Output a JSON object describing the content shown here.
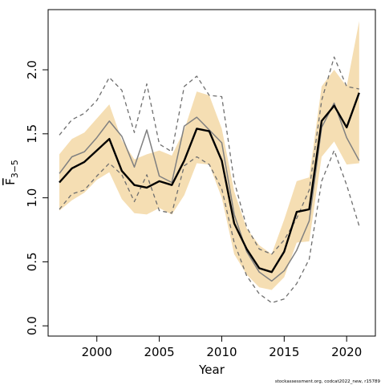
{
  "chart_data": {
    "type": "line",
    "xlabel": "Year",
    "ylabel": {
      "main": "F",
      "sub": "3−5"
    },
    "xlim": [
      1996.1,
      2022.3
    ],
    "ylim": [
      -0.08,
      2.47
    ],
    "xticks": [
      2000,
      2005,
      2010,
      2015,
      2020
    ],
    "yticks": [
      "0.0",
      "0.5",
      "1.0",
      "1.5",
      "2.0"
    ],
    "grid": false,
    "legend": "none",
    "footnote": "stockassessment.org, codcat2022_new, r15789",
    "colors": {
      "band": "#f5deb3",
      "estimate": "#000000",
      "retro": "#808080",
      "retro_dashed": "#6e6e6e"
    },
    "series": [
      {
        "role": "confidence-band",
        "x": [
          1997,
          1998,
          1999,
          2000,
          2001,
          2002,
          2003,
          2004,
          2005,
          2006,
          2007,
          2008,
          2009,
          2010,
          2011,
          2012,
          2013,
          2014,
          2015,
          2016,
          2017,
          2018,
          2019,
          2020,
          2021
        ],
        "lower": [
          0.9,
          0.98,
          1.04,
          1.14,
          1.2,
          0.99,
          0.88,
          0.87,
          0.92,
          0.87,
          1.02,
          1.27,
          1.26,
          1.0,
          0.56,
          0.4,
          0.3,
          0.28,
          0.38,
          0.65,
          0.66,
          1.32,
          1.44,
          1.26,
          1.27
        ],
        "upper": [
          1.34,
          1.46,
          1.51,
          1.62,
          1.73,
          1.45,
          1.3,
          1.34,
          1.37,
          1.33,
          1.53,
          1.83,
          1.8,
          1.54,
          1.05,
          0.76,
          0.63,
          0.56,
          0.83,
          1.13,
          1.16,
          1.87,
          2.0,
          1.87,
          2.38
        ]
      },
      {
        "role": "estimate",
        "x": [
          1997,
          1998,
          1999,
          2000,
          2001,
          2002,
          2003,
          2004,
          2005,
          2006,
          2007,
          2008,
          2009,
          2010,
          2011,
          2012,
          2013,
          2014,
          2015,
          2016,
          2017,
          2018,
          2019,
          2020,
          2021
        ],
        "values": [
          1.12,
          1.23,
          1.28,
          1.37,
          1.46,
          1.21,
          1.1,
          1.08,
          1.13,
          1.1,
          1.29,
          1.54,
          1.52,
          1.29,
          0.8,
          0.6,
          0.45,
          0.42,
          0.58,
          0.89,
          0.91,
          1.6,
          1.72,
          1.55,
          1.82
        ]
      },
      {
        "role": "retro-solid",
        "x": [
          1997,
          1998,
          1999,
          2000,
          2001,
          2002,
          2003,
          2004,
          2005,
          2006,
          2007,
          2008,
          2009,
          2010,
          2011,
          2012,
          2013,
          2014,
          2015,
          2016,
          2017,
          2018,
          2019,
          2020,
          2021
        ],
        "values": [
          1.19,
          1.32,
          1.36,
          1.47,
          1.6,
          1.48,
          1.24,
          1.53,
          1.17,
          1.12,
          1.56,
          1.63,
          1.53,
          1.43,
          0.87,
          0.58,
          0.42,
          0.35,
          0.43,
          0.59,
          0.82,
          1.55,
          1.74,
          1.47,
          1.29
        ]
      },
      {
        "role": "retro-dashed-upper",
        "x": [
          1997,
          1998,
          1999,
          2000,
          2001,
          2002,
          2003,
          2004,
          2005,
          2006,
          2007,
          2008,
          2009,
          2010,
          2011,
          2012,
          2013,
          2014,
          2015,
          2016,
          2017,
          2018,
          2019,
          2020,
          2021
        ],
        "values": [
          1.49,
          1.61,
          1.66,
          1.76,
          1.94,
          1.84,
          1.51,
          1.89,
          1.42,
          1.36,
          1.87,
          1.95,
          1.8,
          1.79,
          1.13,
          0.77,
          0.6,
          0.56,
          0.67,
          0.84,
          1.06,
          1.76,
          2.1,
          1.87,
          1.85
        ]
      },
      {
        "role": "retro-dashed-lower",
        "x": [
          1997,
          1998,
          1999,
          2000,
          2001,
          2002,
          2003,
          2004,
          2005,
          2006,
          2007,
          2008,
          2009,
          2010,
          2011,
          2012,
          2013,
          2014,
          2015,
          2016,
          2017,
          2018,
          2019,
          2020,
          2021
        ],
        "values": [
          0.91,
          1.03,
          1.06,
          1.17,
          1.27,
          1.18,
          0.97,
          1.18,
          0.9,
          0.88,
          1.25,
          1.32,
          1.26,
          1.07,
          0.65,
          0.39,
          0.25,
          0.18,
          0.21,
          0.33,
          0.52,
          1.13,
          1.37,
          1.1,
          0.78
        ]
      }
    ]
  }
}
